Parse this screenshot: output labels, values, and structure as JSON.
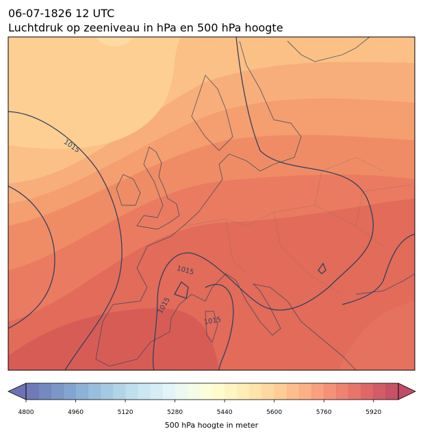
{
  "title": "06-07-1826 12 UTC",
  "subtitle": "Luchtdruk op zeeniveau in hPa en 500 hPa hoogte",
  "isobar_labels": [
    "1015",
    "1015",
    "1015",
    "1015"
  ],
  "colorbar": {
    "lim": [
      4800,
      6000
    ],
    "step": 40,
    "ticks": [
      4800,
      4960,
      5120,
      5280,
      5440,
      5600,
      5760,
      5920
    ],
    "label": "500 hPa hoogte in meter",
    "cmap": "RdYlBu_r"
  }
}
